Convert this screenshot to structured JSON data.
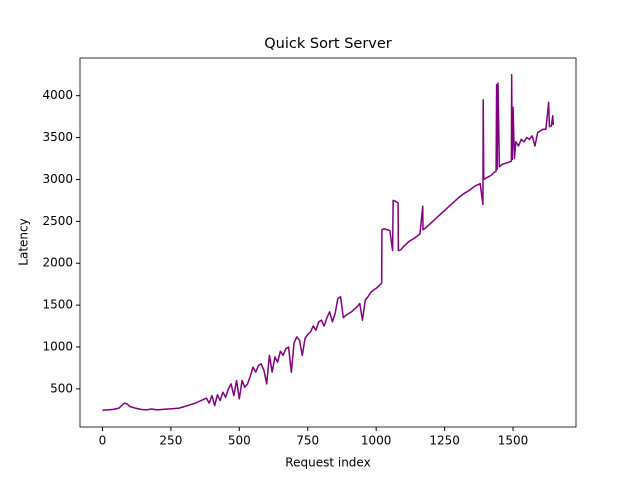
{
  "chart_data": {
    "type": "line",
    "title": "Quick Sort Server",
    "xlabel": "Request index",
    "ylabel": "Latency",
    "x": [
      0,
      20,
      40,
      60,
      80,
      90,
      100,
      120,
      140,
      160,
      180,
      200,
      220,
      240,
      260,
      280,
      300,
      320,
      340,
      360,
      380,
      390,
      400,
      410,
      420,
      430,
      440,
      450,
      460,
      470,
      480,
      490,
      500,
      510,
      520,
      530,
      540,
      550,
      560,
      570,
      580,
      590,
      600,
      610,
      620,
      630,
      640,
      650,
      660,
      670,
      680,
      690,
      700,
      710,
      720,
      730,
      740,
      750,
      760,
      770,
      780,
      790,
      800,
      810,
      820,
      830,
      840,
      850,
      860,
      870,
      880,
      890,
      900,
      910,
      920,
      930,
      940,
      950,
      960,
      970,
      980,
      990,
      1000,
      1010,
      1020,
      1021,
      1030,
      1040,
      1050,
      1060,
      1062,
      1070,
      1080,
      1081,
      1090,
      1100,
      1120,
      1140,
      1160,
      1170,
      1171,
      1180,
      1200,
      1220,
      1240,
      1260,
      1280,
      1300,
      1320,
      1340,
      1360,
      1380,
      1390,
      1391,
      1393,
      1420,
      1430,
      1438,
      1440,
      1442,
      1445,
      1450,
      1460,
      1480,
      1494,
      1495,
      1497,
      1500,
      1505,
      1510,
      1520,
      1530,
      1540,
      1550,
      1560,
      1570,
      1580,
      1590,
      1600,
      1610,
      1620,
      1630,
      1633,
      1640,
      1645,
      1647
    ],
    "series": [
      {
        "name": "Latency",
        "color": "#800080",
        "values": [
          245,
          250,
          255,
          270,
          330,
          320,
          290,
          270,
          255,
          250,
          260,
          250,
          255,
          260,
          265,
          270,
          290,
          310,
          330,
          360,
          390,
          330,
          420,
          300,
          430,
          360,
          460,
          400,
          500,
          560,
          420,
          600,
          380,
          600,
          520,
          560,
          650,
          760,
          700,
          780,
          800,
          720,
          560,
          900,
          700,
          880,
          820,
          950,
          900,
          980,
          1000,
          700,
          1050,
          1120,
          1080,
          900,
          1100,
          1150,
          1180,
          1250,
          1200,
          1300,
          1320,
          1250,
          1350,
          1420,
          1300,
          1400,
          1580,
          1600,
          1350,
          1380,
          1400,
          1420,
          1450,
          1480,
          1520,
          1320,
          1560,
          1600,
          1650,
          1680,
          1700,
          1730,
          1760,
          2400,
          2410,
          2400,
          2390,
          2150,
          2750,
          2740,
          2720,
          2150,
          2160,
          2200,
          2260,
          2300,
          2350,
          2680,
          2400,
          2420,
          2480,
          2540,
          2600,
          2660,
          2720,
          2780,
          2830,
          2870,
          2920,
          2950,
          2700,
          3950,
          3000,
          3050,
          3080,
          3100,
          4130,
          3120,
          4150,
          3150,
          3180,
          3200,
          3220,
          4250,
          3240,
          3860,
          3250,
          3450,
          3400,
          3480,
          3450,
          3500,
          3480,
          3520,
          3400,
          3560,
          3580,
          3600,
          3600,
          3920,
          3630,
          3640,
          3760,
          3650
        ]
      }
    ],
    "xlim": [
      -82,
      1730
    ],
    "ylim": [
      45,
      4450
    ],
    "xticks": [
      0,
      250,
      500,
      750,
      1000,
      1250,
      1500
    ],
    "yticks": [
      500,
      1000,
      1500,
      2000,
      2500,
      3000,
      3500,
      4000
    ]
  }
}
